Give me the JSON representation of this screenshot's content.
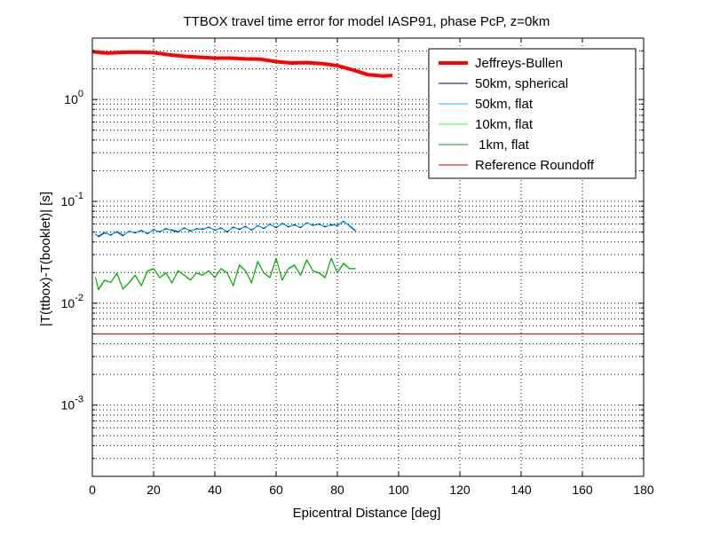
{
  "chart_data": {
    "type": "line",
    "title": "TTBOX travel time error for model IASP91, phase PcP, z=0km",
    "xlabel": "Epicentral Distance [deg]",
    "ylabel": "|T(ttbox)-T(booklet)| [s]",
    "xlim": [
      0,
      180
    ],
    "ylim": [
      0.0002,
      4
    ],
    "yscale": "log",
    "grid": true,
    "legend_position": "top-right",
    "x_ticks": [
      "0",
      "20",
      "40",
      "60",
      "80",
      "100",
      "120",
      "140",
      "160",
      "180"
    ],
    "y_ticks": [
      {
        "mantissa": "10",
        "exp": "-3",
        "value": 0.001
      },
      {
        "mantissa": "10",
        "exp": "-2",
        "value": 0.01
      },
      {
        "mantissa": "10",
        "exp": "-1",
        "value": 0.1
      },
      {
        "mantissa": "10",
        "exp": "0",
        "value": 1
      }
    ],
    "series": [
      {
        "name": "Jeffreys-Bullen",
        "color": "#ff0000",
        "width": 4,
        "x": [
          0,
          5,
          10,
          15,
          20,
          25,
          30,
          35,
          40,
          45,
          50,
          55,
          60,
          65,
          70,
          75,
          80,
          85,
          90,
          95,
          98
        ],
        "y": [
          2.95,
          2.85,
          2.9,
          2.92,
          2.88,
          2.75,
          2.65,
          2.6,
          2.55,
          2.55,
          2.5,
          2.48,
          2.35,
          2.28,
          2.3,
          2.25,
          2.15,
          1.95,
          1.75,
          1.7,
          1.72
        ]
      },
      {
        "name": "50km, spherical",
        "color": "#000080",
        "width": 1,
        "x": [
          1,
          2,
          4,
          6,
          8,
          10,
          12,
          14,
          16,
          18,
          20,
          22,
          24,
          26,
          28,
          30,
          32,
          34,
          36,
          38,
          40,
          42,
          44,
          46,
          48,
          50,
          52,
          54,
          56,
          58,
          60,
          62,
          64,
          66,
          68,
          70,
          72,
          74,
          76,
          78,
          80,
          82,
          84,
          86
        ],
        "y": [
          0.048,
          0.045,
          0.049,
          0.047,
          0.05,
          0.046,
          0.051,
          0.049,
          0.052,
          0.048,
          0.053,
          0.05,
          0.054,
          0.052,
          0.05,
          0.055,
          0.051,
          0.054,
          0.053,
          0.056,
          0.052,
          0.055,
          0.05,
          0.056,
          0.053,
          0.057,
          0.052,
          0.058,
          0.054,
          0.06,
          0.055,
          0.061,
          0.056,
          0.059,
          0.055,
          0.062,
          0.058,
          0.06,
          0.056,
          0.059,
          0.058,
          0.064,
          0.057,
          0.051
        ]
      },
      {
        "name": "50km, flat",
        "color": "#00bfff",
        "width": 1,
        "x": [
          1,
          2,
          4,
          6,
          8,
          10,
          12,
          14,
          16,
          18,
          20,
          22,
          24,
          26,
          28,
          30,
          32,
          34,
          36,
          38,
          40,
          42,
          44,
          46,
          48,
          50,
          52,
          54,
          56,
          58,
          60,
          62,
          64,
          66,
          68,
          70,
          72,
          74,
          76,
          78,
          80,
          82,
          84,
          86
        ],
        "y": [
          0.047,
          0.046,
          0.05,
          0.046,
          0.051,
          0.047,
          0.05,
          0.05,
          0.051,
          0.049,
          0.052,
          0.051,
          0.053,
          0.053,
          0.051,
          0.054,
          0.052,
          0.053,
          0.054,
          0.055,
          0.053,
          0.054,
          0.051,
          0.055,
          0.054,
          0.056,
          0.053,
          0.057,
          0.055,
          0.059,
          0.056,
          0.06,
          0.057,
          0.058,
          0.056,
          0.061,
          0.059,
          0.059,
          0.057,
          0.058,
          0.059,
          0.063,
          0.058,
          0.052
        ]
      },
      {
        "name": "10km, flat",
        "color": "#33ff33",
        "width": 1,
        "x": [
          1,
          2,
          4,
          6,
          8,
          10,
          12,
          14,
          16,
          18,
          20,
          22,
          24,
          26,
          28,
          30,
          32,
          34,
          36,
          38,
          40,
          42,
          44,
          46,
          48,
          50,
          52,
          54,
          56,
          58,
          60,
          62,
          64,
          66,
          68,
          70,
          72,
          74,
          76,
          78,
          80,
          82,
          84,
          86
        ],
        "y": [
          0.018,
          0.014,
          0.017,
          0.016,
          0.02,
          0.014,
          0.016,
          0.019,
          0.015,
          0.021,
          0.022,
          0.018,
          0.02,
          0.016,
          0.021,
          0.019,
          0.017,
          0.02,
          0.019,
          0.021,
          0.018,
          0.022,
          0.02,
          0.015,
          0.024,
          0.021,
          0.016,
          0.026,
          0.02,
          0.018,
          0.028,
          0.017,
          0.022,
          0.024,
          0.019,
          0.027,
          0.021,
          0.02,
          0.018,
          0.028,
          0.02,
          0.025,
          0.022,
          0.022
        ]
      },
      {
        "name": " 1km, flat",
        "color": "#009900",
        "width": 1,
        "x": [
          1,
          2,
          4,
          6,
          8,
          10,
          12,
          14,
          16,
          18,
          20,
          22,
          24,
          26,
          28,
          30,
          32,
          34,
          36,
          38,
          40,
          42,
          44,
          46,
          48,
          50,
          52,
          54,
          56,
          58,
          60,
          62,
          64,
          66,
          68,
          70,
          72,
          74,
          76,
          78,
          80,
          82,
          84,
          86
        ],
        "y": [
          0.018,
          0.0135,
          0.0168,
          0.016,
          0.0195,
          0.0138,
          0.0158,
          0.0188,
          0.0148,
          0.0205,
          0.0218,
          0.0178,
          0.0198,
          0.0158,
          0.0208,
          0.0188,
          0.0168,
          0.0198,
          0.0188,
          0.0208,
          0.0178,
          0.0218,
          0.0198,
          0.0148,
          0.0235,
          0.0208,
          0.0158,
          0.0255,
          0.0198,
          0.0178,
          0.0275,
          0.0168,
          0.0218,
          0.0235,
          0.0188,
          0.0265,
          0.0208,
          0.0198,
          0.0178,
          0.0275,
          0.0198,
          0.0245,
          0.0218,
          0.0218
        ]
      },
      {
        "name": "Reference Roundoff",
        "color": "#cc0000",
        "width": 1,
        "x": [
          0,
          180
        ],
        "y": [
          0.005,
          0.005
        ]
      }
    ]
  }
}
